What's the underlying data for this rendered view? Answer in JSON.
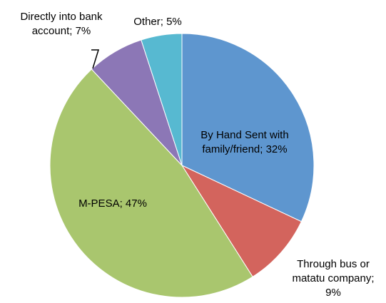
{
  "chart_data": {
    "type": "pie",
    "slices": [
      {
        "label": "By Hand Sent with family/friend",
        "value": 32,
        "value_label": "32%",
        "color": "#5e96cf"
      },
      {
        "label": "Through bus or matatu company",
        "value": 9,
        "value_label": "9%",
        "color": "#d3645d"
      },
      {
        "label": "M-PESA",
        "value": 47,
        "value_label": "47%",
        "color": "#a9c66e"
      },
      {
        "label": "Directly into bank account",
        "value": 7,
        "value_label": "7%",
        "color": "#8c77b6"
      },
      {
        "label": "Other",
        "value": 5,
        "value_label": "5%",
        "color": "#57b9d1"
      }
    ],
    "data_labels": [
      [
        "By Hand Sent with",
        "family/friend; 32%"
      ],
      [
        "Through bus or",
        "matatu company;",
        "9%"
      ],
      [
        "M-PESA; 47%"
      ],
      [
        "Directly into bank",
        "account; 7%"
      ],
      [
        "Other; 5%"
      ]
    ],
    "start_angle_deg": 0,
    "direction": "clockwise",
    "legend": "none"
  }
}
